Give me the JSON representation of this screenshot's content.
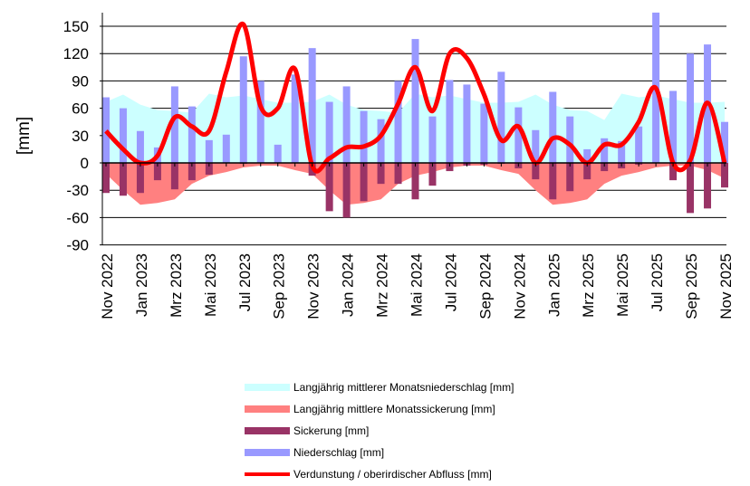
{
  "chart_data": {
    "type": "bar",
    "ylabel": "[mm]",
    "ylim": [
      -90,
      165
    ],
    "yticks": [
      -90,
      -60,
      -30,
      0,
      30,
      60,
      90,
      120,
      150
    ],
    "grid": true,
    "legend_position": "bottom",
    "months": [
      "Nov 2022",
      "Dez 2022",
      "Jan 2023",
      "Feb 2023",
      "Mrz 2023",
      "Apr 2023",
      "Mai 2023",
      "Jun 2023",
      "Jul 2023",
      "Aug 2023",
      "Sep 2023",
      "Okt 2023",
      "Nov 2023",
      "Dez 2023",
      "Jan 2024",
      "Feb 2024",
      "Mrz 2024",
      "Apr 2024",
      "Mai 2024",
      "Jun 2024",
      "Jul 2024",
      "Aug 2024",
      "Sep 2024",
      "Okt 2024",
      "Nov 2024",
      "Dez 2024",
      "Jan 2025",
      "Feb 2025",
      "Mrz 2025",
      "Apr 2025",
      "Mai 2025",
      "Jun 2025",
      "Jul 2025",
      "Aug 2025",
      "Sep 2025",
      "Okt 2025",
      "Nov 2025"
    ],
    "xtick_labels": [
      "Nov 2022",
      "Jan 2023",
      "Mrz 2023",
      "Mai 2023",
      "Jul 2023",
      "Sep 2023",
      "Nov 2023",
      "Jan 2024",
      "Mrz 2024",
      "Mai 2024",
      "Jul 2024",
      "Sep 2024",
      "Nov 2024",
      "Jan 2025",
      "Mrz 2025",
      "Mai 2025",
      "Jul 2025",
      "Sep 2025",
      "Nov 2025"
    ],
    "series": [
      {
        "name": "Langjährig mittlerer Monatsniederschlag [mm]",
        "type": "area",
        "color": "#ccffff",
        "values": [
          67,
          75,
          64,
          58,
          57,
          55,
          76,
          72,
          74,
          70,
          66,
          66,
          67,
          75,
          64,
          58,
          57,
          55,
          76,
          72,
          74,
          70,
          66,
          66,
          67,
          75,
          64,
          58,
          57,
          47,
          76,
          72,
          74,
          70,
          66,
          66,
          67
        ]
      },
      {
        "name": "Langjährig mittlere Monatssickerung [mm]",
        "type": "area",
        "color": "#ff8080",
        "values": [
          -12,
          -30,
          -46,
          -44,
          -40,
          -23,
          -14,
          -10,
          -5,
          -3,
          -3,
          -8,
          -12,
          -30,
          -46,
          -44,
          -40,
          -23,
          -14,
          -10,
          -5,
          -3,
          -3,
          -8,
          -12,
          -30,
          -46,
          -44,
          -40,
          -23,
          -14,
          -10,
          -5,
          -3,
          -3,
          -8,
          -17
        ]
      },
      {
        "name": "Sickerung [mm]",
        "type": "bar",
        "color": "#993366",
        "values": [
          -33,
          -36,
          -33,
          -19,
          -29,
          -19,
          -13,
          0,
          -1,
          0,
          0,
          0,
          -14,
          -53,
          -60,
          -42,
          -23,
          -23,
          -40,
          -25,
          -9,
          -3,
          -2,
          -1,
          -6,
          -18,
          -40,
          -31,
          -18,
          -9,
          -6,
          -2,
          0,
          -19,
          -55,
          -50,
          -27
        ]
      },
      {
        "name": "Niederschlag [mm]",
        "type": "bar",
        "color": "#9999ff",
        "values": [
          72,
          60,
          35,
          17,
          84,
          62,
          25,
          31,
          117,
          90,
          20,
          97,
          126,
          67,
          84,
          57,
          48,
          90,
          136,
          51,
          91,
          86,
          65,
          100,
          61,
          36,
          78,
          51,
          15,
          27,
          24,
          40,
          165,
          79,
          120,
          130,
          45
        ]
      },
      {
        "name": "Verdunstung / oberirdischer Abfluss [mm]",
        "type": "line",
        "color": "#ff0000",
        "values": [
          35,
          15,
          0,
          8,
          50,
          40,
          35,
          100,
          152,
          62,
          60,
          103,
          -3,
          5,
          17,
          18,
          30,
          65,
          105,
          57,
          120,
          115,
          75,
          25,
          40,
          0,
          27,
          20,
          0,
          20,
          20,
          45,
          82,
          0,
          3,
          66,
          0
        ]
      }
    ]
  }
}
